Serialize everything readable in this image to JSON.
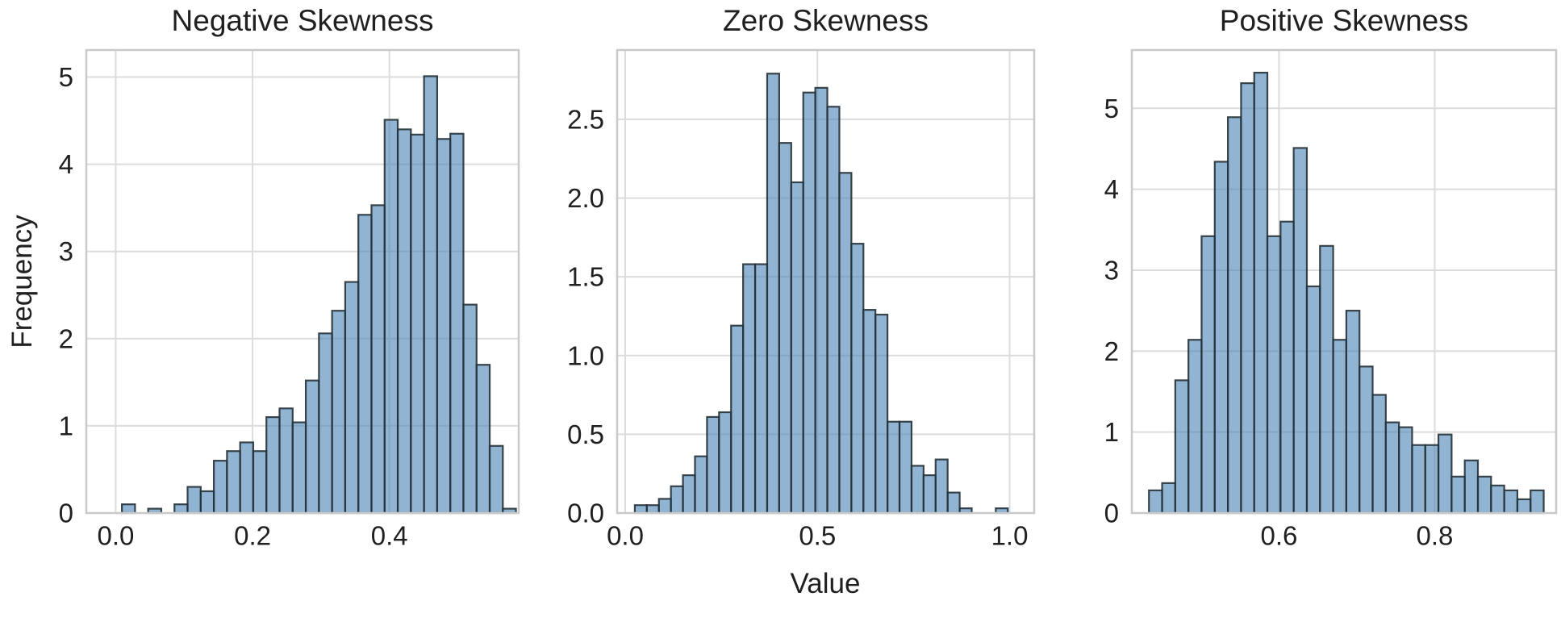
{
  "figure": {
    "xlabel": "Value",
    "ylabel": "Frequency"
  },
  "colors": {
    "background": "#ffffff",
    "bar_fill": "#4682b4",
    "bar_fill_opacity": 0.6,
    "bar_edge": "#263238",
    "grid": "#dcdcdc",
    "spine": "#c9c9c9",
    "text": "#202020"
  },
  "chart_data": [
    {
      "type": "bar",
      "subtype": "histogram",
      "title": "Negative Skewness",
      "xlabel": "Value",
      "ylabel": "Frequency",
      "grid": true,
      "xlim": [
        -0.043,
        0.589
      ],
      "ylim": [
        0,
        5.31
      ],
      "x_ticks": {
        "values": [
          0.0,
          0.2,
          0.4
        ],
        "labels": [
          "0.0",
          "0.2",
          "0.4"
        ]
      },
      "y_ticks": {
        "values": [
          0,
          1,
          2,
          3,
          4,
          5
        ],
        "labels": [
          "0",
          "1",
          "2",
          "3",
          "4",
          "5"
        ]
      },
      "bins": {
        "start": 0.009,
        "width": 0.0192,
        "heights": [
          0.1,
          0,
          0.05,
          0,
          0.1,
          0.3,
          0.25,
          0.6,
          0.71,
          0.81,
          0.71,
          1.1,
          1.2,
          1.04,
          1.52,
          2.06,
          2.32,
          2.65,
          3.42,
          3.53,
          4.51,
          4.4,
          4.34,
          5.01,
          4.29,
          4.35,
          2.39,
          1.7,
          0.77,
          0.05
        ]
      }
    },
    {
      "type": "bar",
      "subtype": "histogram",
      "title": "Zero Skewness",
      "xlabel": "Value",
      "ylabel": "Frequency",
      "grid": true,
      "xlim": [
        -0.021,
        1.064
      ],
      "ylim": [
        0,
        2.94
      ],
      "x_ticks": {
        "values": [
          0.0,
          0.5,
          1.0
        ],
        "labels": [
          "0.0",
          "0.5",
          "1.0"
        ]
      },
      "y_ticks": {
        "values": [
          0.0,
          0.5,
          1.0,
          1.5,
          2.0,
          2.5
        ],
        "labels": [
          "0.0",
          "0.5",
          "1.0",
          "1.5",
          "2.0",
          "2.5"
        ]
      },
      "bins": {
        "start": 0.025,
        "width": 0.0313,
        "heights": [
          0.05,
          0.05,
          0.09,
          0.17,
          0.24,
          0.36,
          0.61,
          0.64,
          1.19,
          1.58,
          1.58,
          2.79,
          2.35,
          2.1,
          2.67,
          2.7,
          2.58,
          2.16,
          1.71,
          1.29,
          1.26,
          0.58,
          0.58,
          0.3,
          0.24,
          0.34,
          0.13,
          0.03,
          0,
          0,
          0.03
        ]
      }
    },
    {
      "type": "bar",
      "subtype": "histogram",
      "title": "Positive Skewness",
      "xlabel": "Value",
      "ylabel": "Frequency",
      "grid": true,
      "xlim": [
        0.411,
        0.956
      ],
      "ylim": [
        0,
        5.72
      ],
      "x_ticks": {
        "values": [
          0.6,
          0.8
        ],
        "labels": [
          "0.6",
          "0.8"
        ]
      },
      "y_ticks": {
        "values": [
          0,
          1,
          2,
          3,
          4,
          5
        ],
        "labels": [
          "0",
          "1",
          "2",
          "3",
          "4",
          "5"
        ]
      },
      "bins": {
        "start": 0.433,
        "width": 0.0169,
        "heights": [
          0.28,
          0.37,
          1.64,
          2.14,
          3.42,
          4.34,
          4.89,
          5.31,
          5.44,
          3.42,
          3.6,
          4.51,
          2.8,
          3.3,
          2.14,
          2.5,
          1.81,
          1.46,
          1.12,
          1.06,
          0.84,
          0.84,
          0.97,
          0.45,
          0.65,
          0.45,
          0.34,
          0.28,
          0.17,
          0.28
        ]
      }
    }
  ]
}
